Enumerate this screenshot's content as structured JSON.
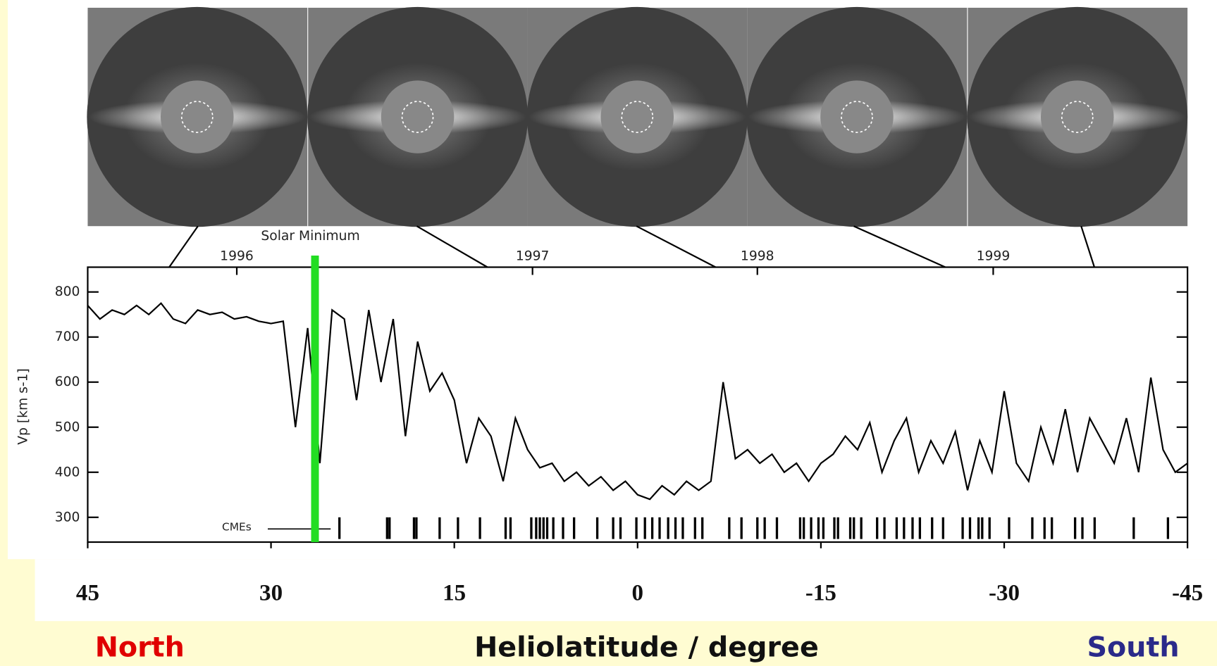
{
  "chart_data": {
    "type": "line",
    "ylabel": "Vp [km s-1]",
    "xlabel": "Heliolatitude / degree",
    "left_label": "North",
    "right_label": "South",
    "marker_label": "Solar Minimum",
    "marker_x": 26.4,
    "event_label": "CMEs",
    "event_x": [
      24.4,
      20.5,
      20.3,
      18.3,
      18.1,
      16.2,
      14.7,
      12.9,
      10.8,
      10.4,
      8.7,
      8.3,
      8.0,
      7.7,
      7.4,
      6.9,
      6.1,
      5.2,
      3.3,
      2.0,
      1.4,
      0.1,
      -0.6,
      -1.2,
      -1.8,
      -2.5,
      -3.1,
      -3.7,
      -4.7,
      -5.3,
      -7.5,
      -8.5,
      -9.8,
      -10.4,
      -11.4,
      -13.3,
      -13.6,
      -14.2,
      -14.8,
      -15.2,
      -16.1,
      -16.4,
      -17.4,
      -17.7,
      -18.3,
      -19.6,
      -20.2,
      -21.2,
      -21.8,
      -22.5,
      -23.1,
      -24.1,
      -25.0,
      -26.6,
      -27.2,
      -27.9,
      -28.2,
      -28.8,
      -30.4,
      -32.3,
      -33.3,
      -33.9,
      -35.8,
      -36.4,
      -37.4,
      -40.6,
      -43.4
    ],
    "x": [
      45,
      44,
      43,
      42,
      41,
      40,
      39,
      38,
      37,
      36,
      35,
      34,
      33,
      32,
      31,
      30,
      29,
      28,
      27,
      26,
      25,
      24,
      23,
      22,
      21,
      20,
      19,
      18,
      17,
      16,
      15,
      14,
      13,
      12,
      11,
      10,
      9,
      8,
      7,
      6,
      5,
      4,
      3,
      2,
      1,
      0,
      -1,
      -2,
      -3,
      -4,
      -5,
      -6,
      -7,
      -8,
      -9,
      -10,
      -11,
      -12,
      -13,
      -14,
      -15,
      -16,
      -17,
      -18,
      -19,
      -20,
      -21,
      -22,
      -23,
      -24,
      -25,
      -26,
      -27,
      -28,
      -29,
      -30,
      -31,
      -32,
      -33,
      -34,
      -35,
      -36,
      -37,
      -38,
      -39,
      -40,
      -41,
      -42,
      -43,
      -44,
      -45
    ],
    "values": [
      770,
      740,
      760,
      750,
      770,
      750,
      775,
      740,
      730,
      760,
      750,
      755,
      740,
      745,
      735,
      730,
      735,
      500,
      720,
      420,
      760,
      740,
      560,
      760,
      600,
      740,
      480,
      690,
      580,
      620,
      560,
      420,
      520,
      480,
      380,
      520,
      450,
      410,
      420,
      380,
      400,
      370,
      390,
      360,
      380,
      350,
      340,
      370,
      350,
      380,
      360,
      380,
      600,
      430,
      450,
      420,
      440,
      400,
      420,
      380,
      420,
      440,
      480,
      450,
      510,
      400,
      470,
      520,
      400,
      470,
      420,
      490,
      360,
      470,
      400,
      580,
      420,
      380,
      500,
      420,
      540,
      400,
      520,
      470,
      420,
      520,
      400,
      610,
      450,
      400,
      420
    ],
    "color": "#000000",
    "marker_color": "#22dd22",
    "xlim": [
      45,
      -45
    ],
    "xticks": [
      45,
      30,
      15,
      0,
      -15,
      -30,
      -45
    ],
    "ylim": [
      245,
      855
    ],
    "yticks": [
      300,
      400,
      500,
      600,
      700,
      800
    ],
    "top_ticks": [
      {
        "value": 32.8,
        "label": "1996"
      },
      {
        "value": 8.6,
        "label": "1997"
      },
      {
        "value": -9.8,
        "label": "1998"
      },
      {
        "value": -29.1,
        "label": "1999"
      }
    ]
  }
}
